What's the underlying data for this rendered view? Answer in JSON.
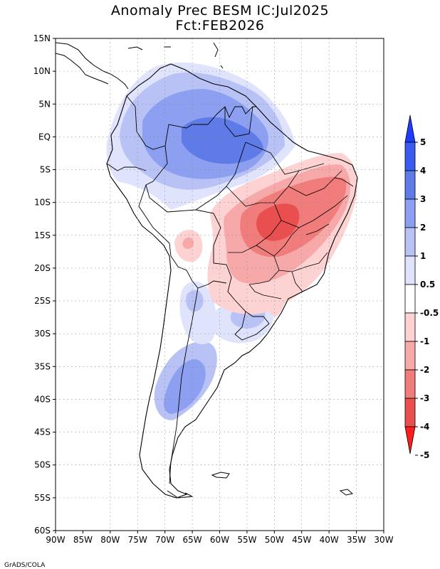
{
  "title": {
    "line1": "Anomaly Prec BESM IC:Jul2025",
    "line2": "Fct:FEB2026"
  },
  "map": {
    "lon_range": [
      -90,
      -30
    ],
    "lat_range": [
      -60,
      15
    ],
    "lon_ticks": [
      "90W",
      "85W",
      "80W",
      "75W",
      "70W",
      "65W",
      "60W",
      "55W",
      "50W",
      "45W",
      "40W",
      "35W",
      "30W"
    ],
    "lat_ticks": [
      "15N",
      "10N",
      "5N",
      "EQ",
      "5S",
      "10S",
      "15S",
      "20S",
      "25S",
      "30S",
      "35S",
      "40S",
      "45S",
      "50S",
      "55S",
      "60S"
    ]
  },
  "colorbar": {
    "labels": [
      "5",
      "4",
      "3",
      "2",
      "1",
      "0.5",
      "-0.5",
      "-1",
      "-2",
      "-3",
      "-4",
      "-5"
    ],
    "colors": [
      "#1e3cff",
      "#3a5bef",
      "#5f7be8",
      "#8c9ff0",
      "#b9c2f5",
      "#dfe3fb",
      "#ffffff",
      "#fcd2d2",
      "#f7a9a9",
      "#f07c7c",
      "#ea4f4f",
      "#ff1c1c"
    ]
  },
  "credit": "GrADS/COLA"
}
